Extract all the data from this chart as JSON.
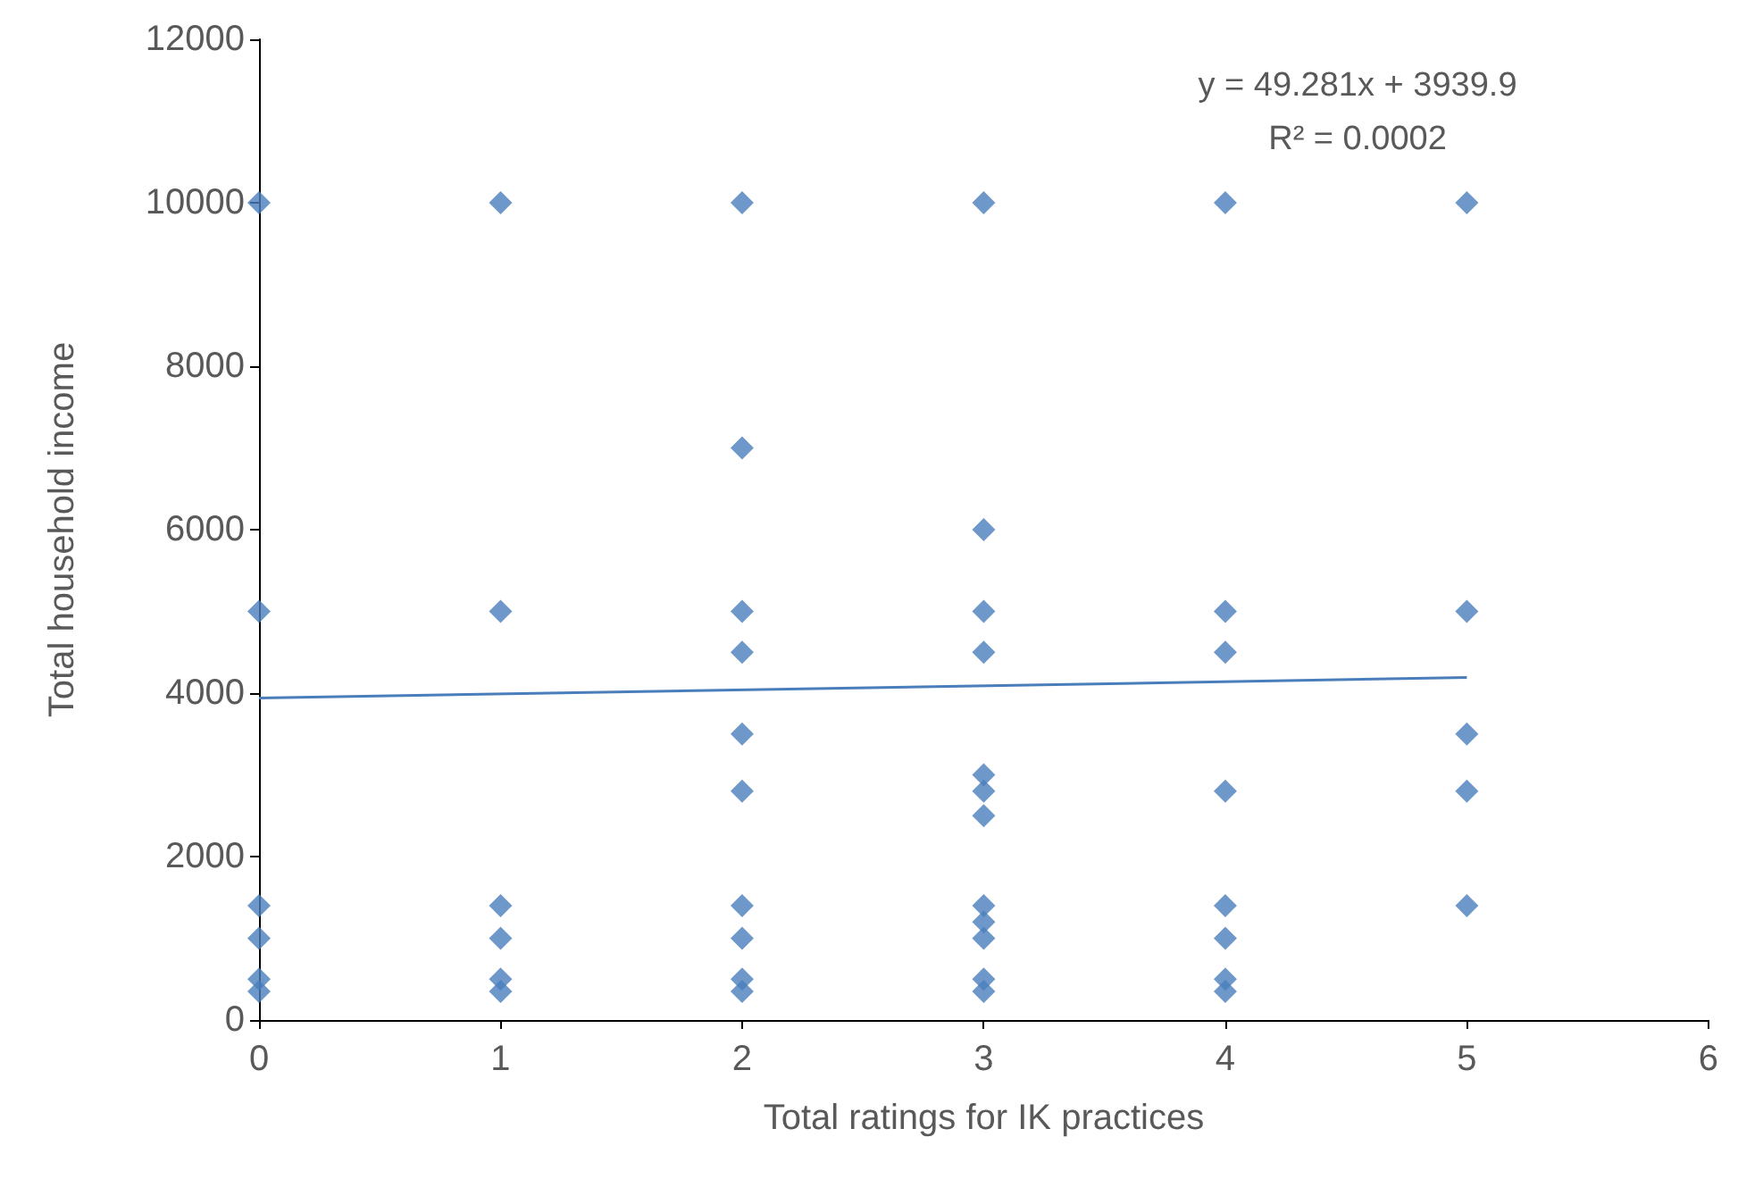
{
  "chart_data": {
    "type": "scatter",
    "xlabel": "Total ratings for IK practices",
    "ylabel": "Total household income",
    "series": [
      {
        "color": "#4a7ebb",
        "x": [
          0,
          0,
          0,
          0,
          0,
          0,
          1,
          1,
          1,
          1,
          1,
          1,
          2,
          2,
          2,
          2,
          2,
          2,
          2,
          2,
          2,
          2,
          3,
          3,
          3,
          3,
          3,
          3,
          3,
          3,
          3,
          3,
          3,
          3,
          4,
          4,
          4,
          4,
          4,
          4,
          4,
          4,
          5,
          5,
          5,
          5,
          5
        ],
        "values": [
          10000,
          5000,
          1400,
          1000,
          500,
          350,
          10000,
          5000,
          1400,
          1000,
          500,
          350,
          10000,
          7000,
          5000,
          4500,
          3500,
          2800,
          1400,
          1000,
          500,
          350,
          10000,
          6000,
          5000,
          4500,
          3000,
          2800,
          2500,
          1400,
          1200,
          1000,
          500,
          350,
          10000,
          5000,
          4500,
          2800,
          1400,
          1000,
          500,
          350,
          10000,
          5000,
          3500,
          2800,
          1400
        ]
      },
      {
        "type": "line",
        "color": "#4a7ebb",
        "marker": "none",
        "x": [
          0,
          5
        ],
        "values": [
          3940,
          4190
        ]
      }
    ],
    "annotations": [
      "y = 49.281x + 3939.9",
      "R² = 0.0002"
    ],
    "xlim": [
      0,
      6
    ],
    "xticks": [
      0,
      1,
      2,
      3,
      4,
      5,
      6
    ],
    "ylim": [
      0,
      12000
    ],
    "yticks": [
      0,
      2000,
      4000,
      6000,
      8000,
      10000,
      12000
    ],
    "grid": false,
    "marker": "diamond"
  }
}
